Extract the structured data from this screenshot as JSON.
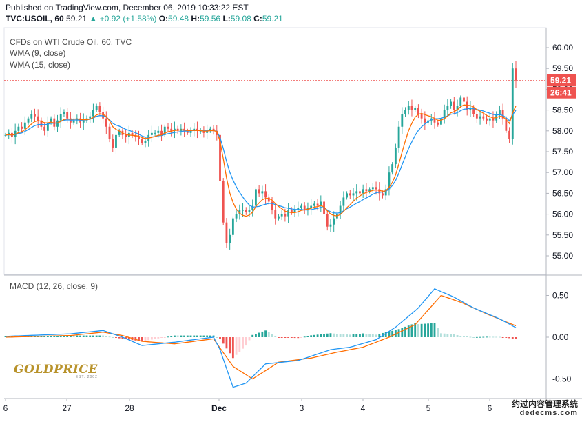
{
  "header": {
    "published": "Published on TradingView.com, December 06, 2019 10:33:22 EST",
    "symbol": "TVC:USOIL, 60",
    "last": "59.21",
    "change": "▲ +0.92 (+1.58%)",
    "open_label": "O:",
    "open": "59.48",
    "high_label": "H:",
    "high": "59.56",
    "low_label": "L:",
    "low": "59.08",
    "close_label": "C:",
    "close": "59.21"
  },
  "legend": {
    "title": "CFDs on WTI Crude Oil, 60, TVC",
    "wma9": "WMA (9, close)",
    "wma15": "WMA (15, close)",
    "macd": "MACD (12, 26, close, 9)"
  },
  "badges": {
    "price": "59.21",
    "timer": "26:41"
  },
  "watermark": {
    "line1": "约过内容管理系统",
    "line2": "dedecms.com"
  },
  "logo": {
    "text": "GOLDPRICE",
    "sub": "EST. 2002"
  },
  "colors": {
    "up": "#26a69a",
    "down": "#ef5350",
    "wma9": "#ff6d00",
    "wma15": "#2196f3",
    "macd": "#2196f3",
    "signal": "#ff6d00",
    "price_line": "#ef5350"
  },
  "chart_data": [
    {
      "type": "candlestick",
      "symbol": "TVC:USOIL",
      "interval": "60",
      "x_ticks": [
        "6",
        "27",
        "28",
        "Dec",
        "3",
        "4",
        "5",
        "6"
      ],
      "y_ticks": [
        "55.00",
        "55.50",
        "56.00",
        "56.50",
        "57.00",
        "57.50",
        "58.00",
        "58.50",
        "59.00",
        "59.50",
        "60.00"
      ],
      "ylim": [
        54.7,
        60.3
      ],
      "last_price": 59.21,
      "closes": [
        57.9,
        57.95,
        57.85,
        58.0,
        58.1,
        58.05,
        58.2,
        58.3,
        58.4,
        58.35,
        58.25,
        58.1,
        58.0,
        58.2,
        58.3,
        58.1,
        58.25,
        58.4,
        58.45,
        58.3,
        58.2,
        58.25,
        58.3,
        58.2,
        58.25,
        58.3,
        58.35,
        58.5,
        58.6,
        58.45,
        58.3,
        58.1,
        57.8,
        57.6,
        57.9,
        58.0,
        57.9,
        57.85,
        57.95,
        57.9,
        57.85,
        57.8,
        57.7,
        57.75,
        57.9,
        57.95,
        57.95,
        58.0,
        57.9,
        58.1,
        58.05,
        58.0,
        58.05,
        58.0,
        58.05,
        58.0,
        57.95,
        58.0,
        58.05,
        58.0,
        58.0,
        57.95,
        58.0,
        58.05,
        58.0,
        57.9,
        56.8,
        55.8,
        55.3,
        55.5,
        55.9,
        56.0,
        56.1,
        56.1,
        56.05,
        56.1,
        56.2,
        56.6,
        56.5,
        56.55,
        56.4,
        56.3,
        56.1,
        55.9,
        55.95,
        56.0,
        55.95,
        56.1,
        56.05,
        56.1,
        56.15,
        56.2,
        56.1,
        56.15,
        56.2,
        56.25,
        56.2,
        56.3,
        56.0,
        55.7,
        55.75,
        55.9,
        56.0,
        56.2,
        56.4,
        56.5,
        56.45,
        56.5,
        56.55,
        56.5,
        56.6,
        56.55,
        56.6,
        56.65,
        56.6,
        56.5,
        56.45,
        56.6,
        57.0,
        57.2,
        57.6,
        58.1,
        58.4,
        58.5,
        58.6,
        58.5,
        58.55,
        58.4,
        58.3,
        58.2,
        58.25,
        58.3,
        58.2,
        58.15,
        58.3,
        58.5,
        58.6,
        58.7,
        58.5,
        58.6,
        58.8,
        58.7,
        58.5,
        58.55,
        58.4,
        58.3,
        58.35,
        58.3,
        58.25,
        58.3,
        58.25,
        58.4,
        58.5,
        58.3,
        58.0,
        57.8,
        59.5,
        59.21
      ],
      "series": [
        {
          "name": "WMA (9, close)",
          "color": "#ff6d00"
        },
        {
          "name": "WMA (15, close)",
          "color": "#2196f3"
        }
      ]
    },
    {
      "type": "macd",
      "name": "MACD (12, 26, close, 9)",
      "y_ticks": [
        "0.50",
        "0.00",
        "-0.50"
      ],
      "ylim": [
        -0.7,
        0.75
      ],
      "macd_keypoints": [
        [
          0,
          0.01
        ],
        [
          20,
          0.04
        ],
        [
          30,
          0.08
        ],
        [
          36,
          0.0
        ],
        [
          42,
          -0.1
        ],
        [
          52,
          -0.06
        ],
        [
          64,
          0.0
        ],
        [
          66,
          -0.15
        ],
        [
          70,
          -0.6
        ],
        [
          74,
          -0.55
        ],
        [
          80,
          -0.32
        ],
        [
          90,
          -0.28
        ],
        [
          100,
          -0.15
        ],
        [
          106,
          -0.12
        ],
        [
          114,
          -0.03
        ],
        [
          120,
          0.12
        ],
        [
          127,
          0.35
        ],
        [
          132,
          0.58
        ],
        [
          138,
          0.48
        ],
        [
          144,
          0.35
        ],
        [
          152,
          0.22
        ],
        [
          160,
          0.05
        ],
        [
          167,
          0.03
        ],
        [
          170,
          0.13
        ]
      ],
      "signal_keypoints": [
        [
          0,
          0.0
        ],
        [
          20,
          0.02
        ],
        [
          30,
          0.06
        ],
        [
          36,
          0.02
        ],
        [
          42,
          -0.05
        ],
        [
          52,
          -0.08
        ],
        [
          64,
          -0.02
        ],
        [
          70,
          -0.35
        ],
        [
          76,
          -0.5
        ],
        [
          84,
          -0.3
        ],
        [
          94,
          -0.25
        ],
        [
          102,
          -0.18
        ],
        [
          110,
          -0.12
        ],
        [
          118,
          0.0
        ],
        [
          126,
          0.15
        ],
        [
          134,
          0.5
        ],
        [
          140,
          0.42
        ],
        [
          148,
          0.28
        ],
        [
          158,
          0.12
        ],
        [
          166,
          0.04
        ],
        [
          170,
          0.06
        ]
      ]
    }
  ]
}
